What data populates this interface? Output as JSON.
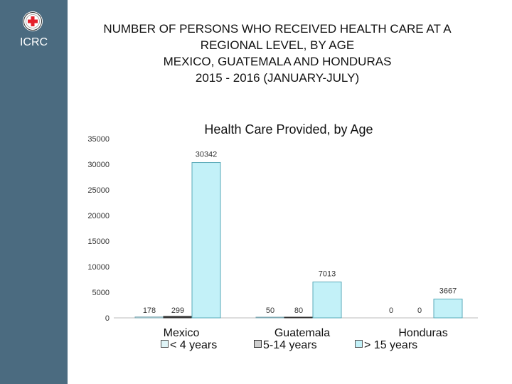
{
  "brand": {
    "logo_text": "ICRC",
    "sidebar_color": "#4b6b80",
    "emblem_color": "#e4202b"
  },
  "slide_title": {
    "lines": [
      "NUMBER OF PERSONS WHO RECEIVED HEALTH CARE AT A",
      "REGIONAL LEVEL, BY AGE",
      "MEXICO, GUATEMALA AND HONDURAS",
      "2015 - 2016 (JANUARY-JULY)"
    ]
  },
  "chart_data": {
    "type": "bar",
    "title": "Health Care Provided, by Age",
    "categories": [
      "Mexico",
      "Guatemala",
      "Honduras"
    ],
    "series": [
      {
        "name": "< 4 years",
        "values": [
          178,
          50,
          0
        ],
        "color": "#dff4f7"
      },
      {
        "name": "5-14 years",
        "values": [
          299,
          80,
          0
        ],
        "color": "#3f3f3f"
      },
      {
        "name": "> 15 years",
        "values": [
          30342,
          7013,
          3667
        ],
        "color": "#c3f1f8"
      }
    ],
    "ylim": [
      0,
      35000
    ],
    "yticks": [
      "0",
      "5000",
      "10000",
      "15000",
      "20000",
      "25000",
      "30000",
      "35000"
    ],
    "xlabel": "",
    "ylabel": "",
    "grid": false,
    "legend_position": "bottom"
  }
}
